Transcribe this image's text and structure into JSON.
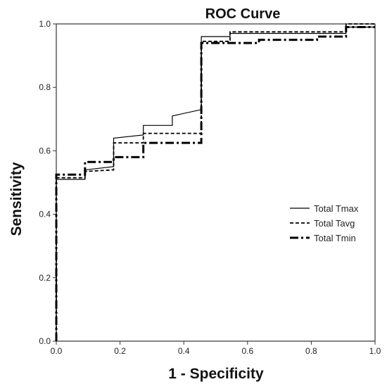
{
  "chart_data": {
    "type": "line",
    "title": "ROC Curve",
    "xlabel": "1 - Specificity",
    "ylabel": "Sensitivity",
    "xlim": [
      0.0,
      1.0
    ],
    "ylim": [
      0.0,
      1.0
    ],
    "x_ticks": [
      "0.0",
      "0.2",
      "0.4",
      "0.6",
      "0.8",
      "1.0"
    ],
    "y_ticks": [
      "0.0",
      "0.2",
      "0.4",
      "0.6",
      "0.8",
      "1.0"
    ],
    "grid": false,
    "legend_position": "right",
    "series": [
      {
        "name": "Total Tmax",
        "style": "solid",
        "color": "#000000",
        "x": [
          0.0,
          0.0,
          0.09,
          0.09,
          0.18,
          0.18,
          0.273,
          0.273,
          0.364,
          0.364,
          0.455,
          0.455,
          0.545,
          0.545,
          0.909,
          0.909,
          1.0
        ],
        "y": [
          0.0,
          0.51,
          0.51,
          0.54,
          0.55,
          0.64,
          0.65,
          0.68,
          0.68,
          0.71,
          0.73,
          0.96,
          0.96,
          0.97,
          0.97,
          0.99,
          0.99
        ]
      },
      {
        "name": "Total Tavg",
        "style": "dashed",
        "color": "#000000",
        "x": [
          0.0,
          0.0,
          0.09,
          0.09,
          0.18,
          0.18,
          0.273,
          0.273,
          0.455,
          0.455,
          0.545,
          0.545,
          0.909,
          0.909,
          1.0
        ],
        "y": [
          0.0,
          0.515,
          0.515,
          0.535,
          0.54,
          0.625,
          0.625,
          0.655,
          0.655,
          0.945,
          0.945,
          0.975,
          0.975,
          1.0,
          1.0
        ]
      },
      {
        "name": "Total Tmin",
        "style": "dash-dot",
        "color": "#000000",
        "x": [
          0.0,
          0.0,
          0.09,
          0.09,
          0.18,
          0.18,
          0.273,
          0.273,
          0.455,
          0.455,
          0.636,
          0.636,
          0.818,
          0.818,
          0.909,
          0.909,
          1.0
        ],
        "y": [
          0.0,
          0.525,
          0.525,
          0.565,
          0.565,
          0.58,
          0.58,
          0.625,
          0.625,
          0.94,
          0.94,
          0.95,
          0.95,
          0.96,
          0.96,
          0.99,
          0.99
        ]
      }
    ]
  }
}
